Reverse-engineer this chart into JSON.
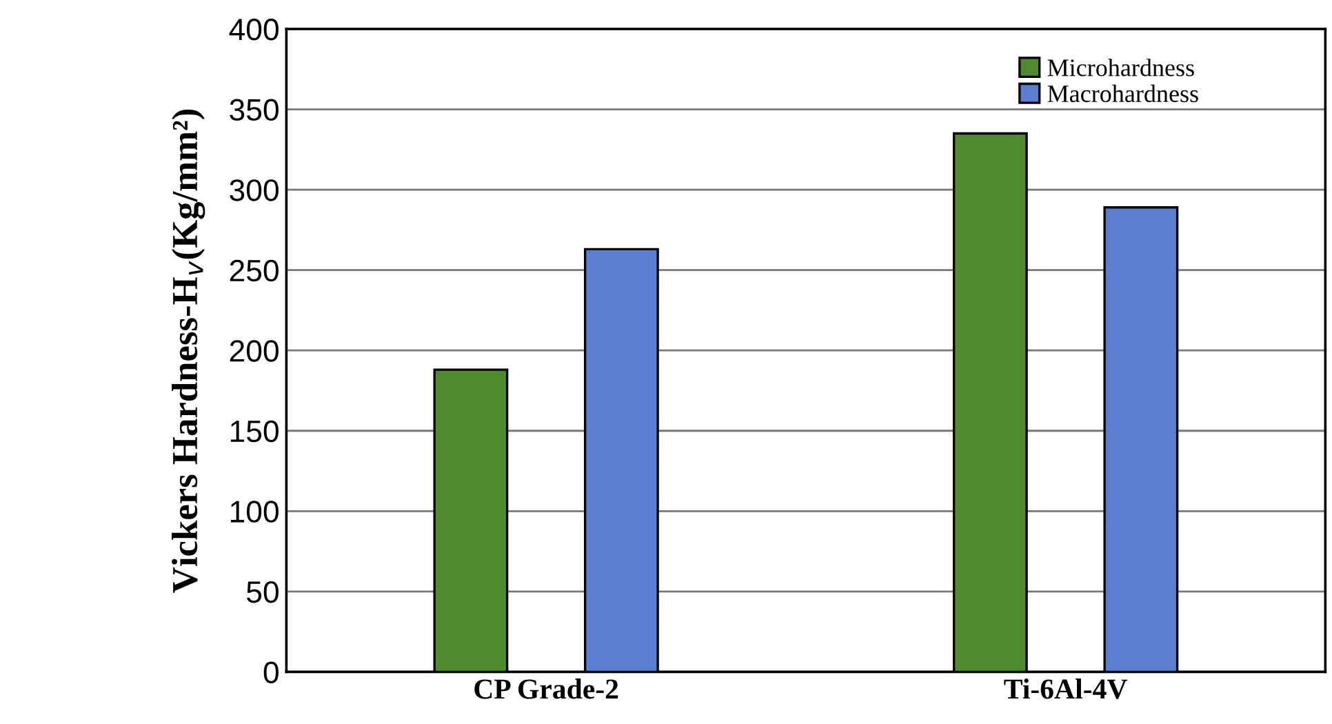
{
  "chart_data": {
    "type": "bar",
    "ylabel": "Vickers Hardness-H$_{v}$(Kg/mm²)",
    "categories": [
      "CP Grade-2",
      "Ti-6Al-4V"
    ],
    "series": [
      {
        "name": "Microhardness",
        "color": "#4e8a2e",
        "values": [
          188,
          335
        ]
      },
      {
        "name": "Macrohardness",
        "color": "#5b7fd0",
        "values": [
          263,
          289
        ]
      }
    ],
    "ylim": [
      0,
      400
    ],
    "yticks": [
      0,
      50,
      100,
      150,
      200,
      250,
      300,
      350,
      400
    ],
    "grid": "y",
    "legend": "top right"
  }
}
